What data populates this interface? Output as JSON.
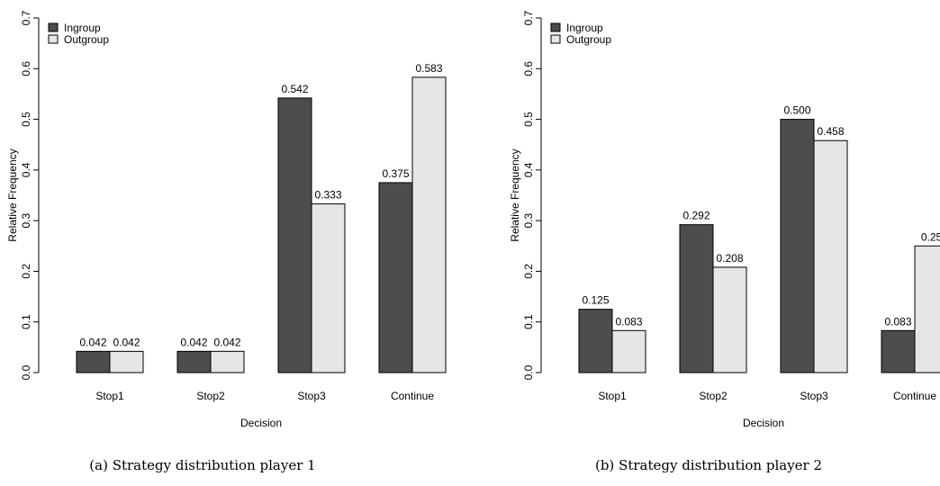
{
  "chart_data": [
    {
      "type": "bar",
      "caption": "(a)  Strategy distribution player 1",
      "categories": [
        "Stop1",
        "Stop2",
        "Stop3",
        "Continue"
      ],
      "series": [
        {
          "name": "Ingroup",
          "values": [
            0.042,
            0.042,
            0.542,
            0.375
          ],
          "labels": [
            "0.042",
            "0.042",
            "0.542",
            "0.375"
          ],
          "color": "#4d4d4d"
        },
        {
          "name": "Outgroup",
          "values": [
            0.042,
            0.042,
            0.333,
            0.583
          ],
          "labels": [
            "0.042",
            "0.042",
            "0.333",
            "0.583"
          ],
          "color": "#e6e6e6"
        }
      ],
      "xlabel": "Decision",
      "ylabel": "Relative Frequency",
      "ylim": [
        0,
        0.7
      ],
      "yticks": [
        "0.0",
        "0.1",
        "0.2",
        "0.3",
        "0.4",
        "0.5",
        "0.6",
        "0.7"
      ],
      "legend": "top-left",
      "grid": false
    },
    {
      "type": "bar",
      "caption": "(b)  Strategy distribution player 2",
      "categories": [
        "Stop1",
        "Stop2",
        "Stop3",
        "Continue"
      ],
      "series": [
        {
          "name": "Ingroup",
          "values": [
            0.125,
            0.292,
            0.5,
            0.083
          ],
          "labels": [
            "0.125",
            "0.292",
            "0.500",
            "0.083"
          ],
          "color": "#4d4d4d"
        },
        {
          "name": "Outgroup",
          "values": [
            0.083,
            0.208,
            0.458,
            0.25
          ],
          "labels": [
            "0.083",
            "0.208",
            "0.458",
            "0.25"
          ],
          "color": "#e6e6e6"
        }
      ],
      "xlabel": "Decision",
      "ylabel": "Relative Frequency",
      "ylim": [
        0,
        0.7
      ],
      "yticks": [
        "0.0",
        "0.1",
        "0.2",
        "0.3",
        "0.4",
        "0.5",
        "0.6",
        "0.7"
      ],
      "legend": "top-left",
      "grid": false
    }
  ]
}
